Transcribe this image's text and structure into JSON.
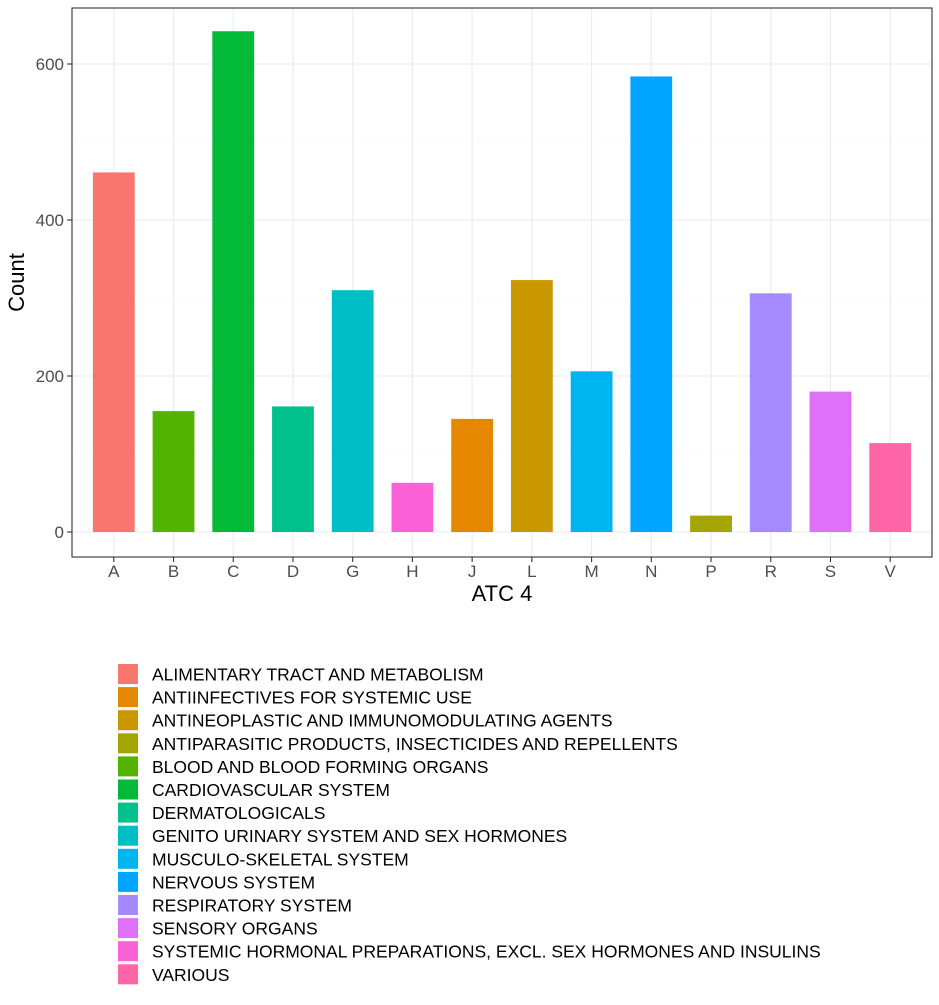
{
  "chart_data": {
    "type": "bar",
    "xlabel": "ATC 4",
    "ylabel": "Count",
    "ylim": [
      -20,
      642
    ],
    "y_ticks": [
      0,
      200,
      400,
      600
    ],
    "grid": true,
    "legend_position": "bottom",
    "categories": [
      "A",
      "B",
      "C",
      "D",
      "G",
      "H",
      "J",
      "L",
      "M",
      "N",
      "P",
      "R",
      "S",
      "V"
    ],
    "values": [
      461,
      155,
      642,
      161,
      310,
      63,
      145,
      323,
      206,
      584,
      21,
      306,
      180,
      114
    ],
    "category_groups": [
      "ALIMENTARY TRACT AND METABOLISM",
      "BLOOD AND BLOOD FORMING ORGANS",
      "CARDIOVASCULAR SYSTEM",
      "DERMATOLOGICALS",
      "GENITO URINARY SYSTEM AND SEX HORMONES",
      "SYSTEMIC HORMONAL PREPARATIONS, EXCL. SEX HORMONES AND INSULINS",
      "ANTIINFECTIVES FOR SYSTEMIC USE",
      "ANTINEOPLASTIC AND IMMUNOMODULATING AGENTS",
      "MUSCULO-SKELETAL SYSTEM",
      "NERVOUS SYSTEM",
      "ANTIPARASITIC PRODUCTS, INSECTICIDES AND REPELLENTS",
      "RESPIRATORY SYSTEM",
      "SENSORY ORGANS",
      "VARIOUS"
    ],
    "legend": [
      {
        "label": "ALIMENTARY TRACT AND METABOLISM",
        "color": "#F8766D"
      },
      {
        "label": "ANTIINFECTIVES FOR SYSTEMIC USE",
        "color": "#E58700"
      },
      {
        "label": "ANTINEOPLASTIC AND IMMUNOMODULATING AGENTS",
        "color": "#C99800"
      },
      {
        "label": "ANTIPARASITIC PRODUCTS, INSECTICIDES AND REPELLENTS",
        "color": "#A3A500"
      },
      {
        "label": "BLOOD AND BLOOD FORMING ORGANS",
        "color": "#53B400"
      },
      {
        "label": "CARDIOVASCULAR SYSTEM",
        "color": "#00BA38"
      },
      {
        "label": "DERMATOLOGICALS",
        "color": "#00C08B"
      },
      {
        "label": "GENITO URINARY SYSTEM AND SEX HORMONES",
        "color": "#00BFC4"
      },
      {
        "label": "MUSCULO-SKELETAL SYSTEM",
        "color": "#00B4F0"
      },
      {
        "label": "NERVOUS SYSTEM",
        "color": "#00A5FF"
      },
      {
        "label": "RESPIRATORY SYSTEM",
        "color": "#A58AFF"
      },
      {
        "label": "SENSORY ORGANS",
        "color": "#DF70F8"
      },
      {
        "label": "SYSTEMIC HORMONAL PREPARATIONS, EXCL. SEX HORMONES AND INSULINS",
        "color": "#FB61D7"
      },
      {
        "label": "VARIOUS",
        "color": "#FF66A8"
      }
    ]
  }
}
